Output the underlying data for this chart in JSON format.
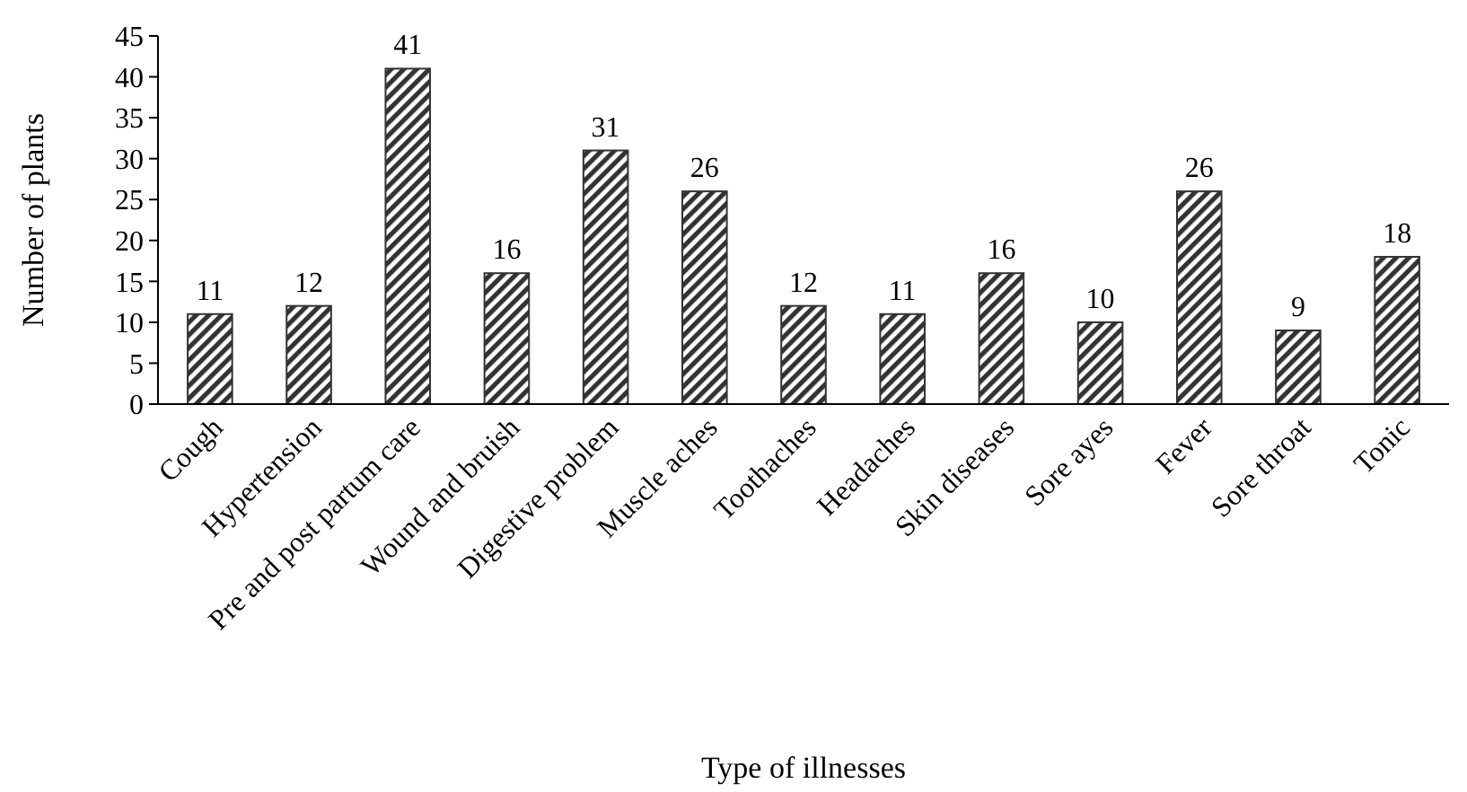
{
  "chart_data": {
    "type": "bar",
    "xlabel": "Type of illnesses",
    "ylabel": "Number of plants",
    "categories": [
      "Cough",
      "Hypertension",
      "Pre and post partum care",
      "Wound and bruish",
      "Digestive problem",
      "Muscle aches",
      "Toothaches",
      "Headaches",
      "Skin diseases",
      "Sore ayes",
      "Fever",
      "Sore throat",
      "Tonic"
    ],
    "values": [
      11,
      12,
      41,
      16,
      31,
      26,
      12,
      11,
      16,
      10,
      26,
      9,
      18
    ],
    "color": "#333333",
    "ylim": [
      0,
      45
    ],
    "yticks": [
      0,
      5,
      10,
      15,
      20,
      25,
      30,
      35,
      40,
      45
    ],
    "data_labels": true,
    "grid": false
  }
}
